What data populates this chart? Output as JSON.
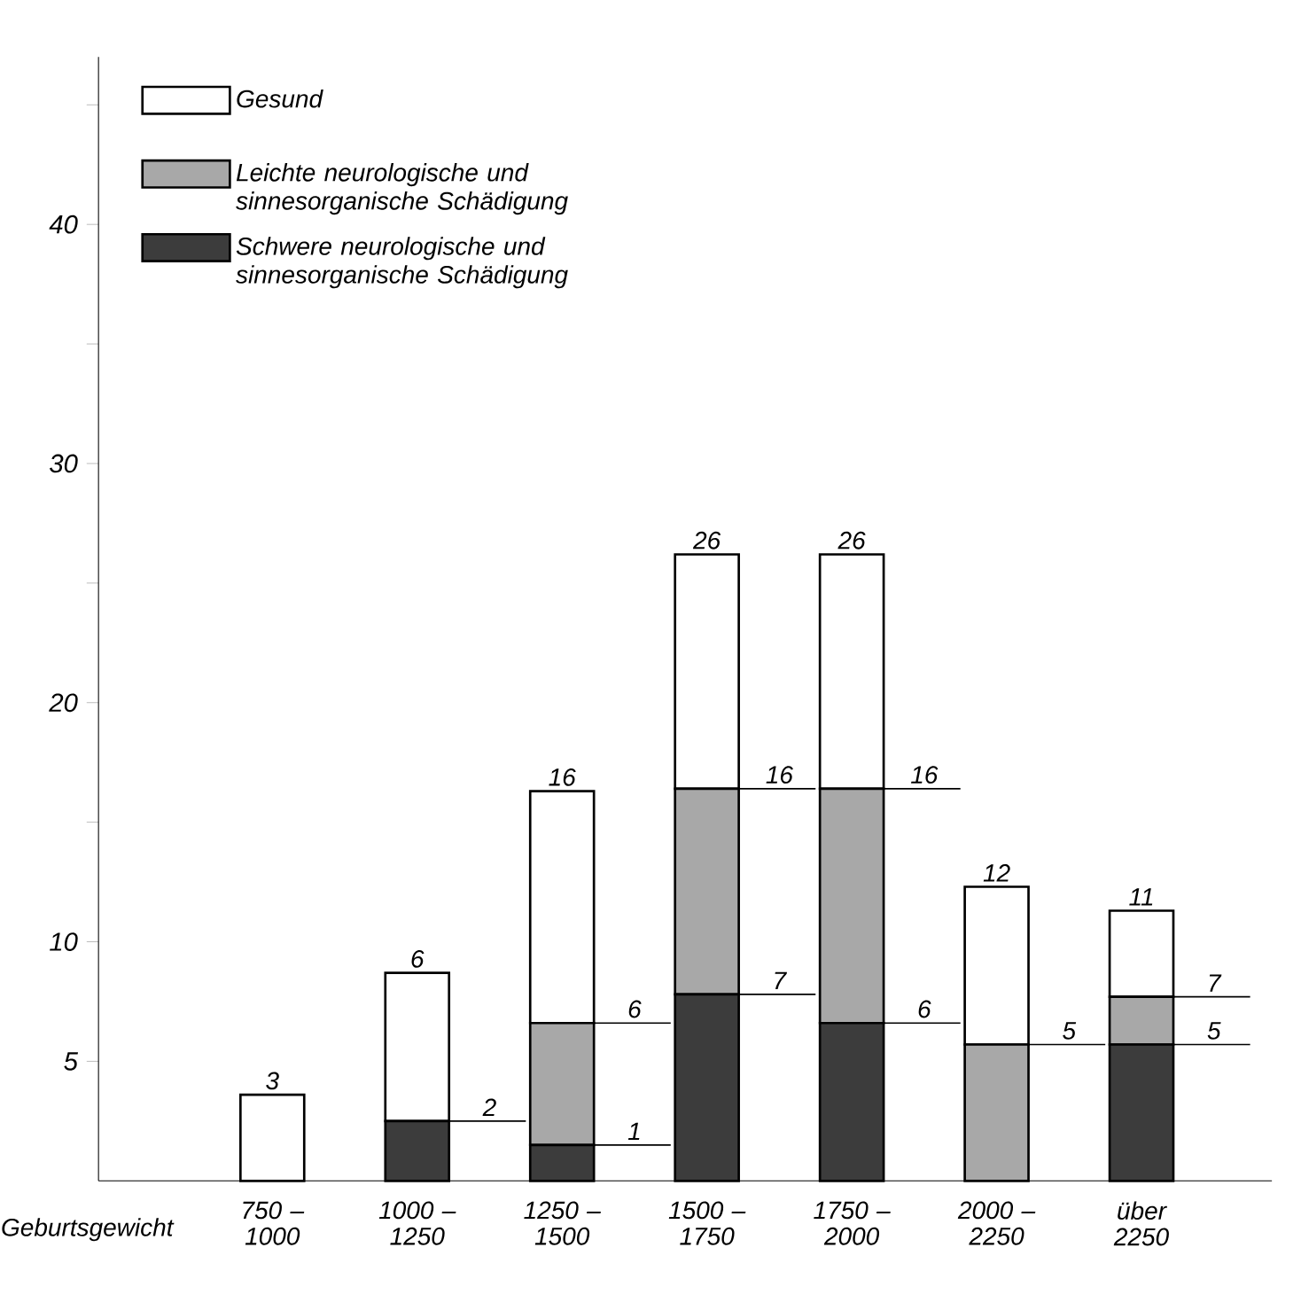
{
  "chart_data": {
    "type": "bar",
    "stacked": true,
    "xlabel": "Geburtsgewicht",
    "categories": [
      "750 – 1000",
      "1000 – 1250",
      "1250 – 1500",
      "1500 – 1750",
      "1750 – 2000",
      "2000 – 2250",
      "über 2250"
    ],
    "series": [
      {
        "name": "Schwere neurologische und sinnesorganische Schädigung",
        "color": "#3c3c3c",
        "values": [
          0,
          2.5,
          1.5,
          7.8,
          6.6,
          0,
          5.7
        ]
      },
      {
        "name": "Leichte neurologische und sinnesorganische Schädigung",
        "color": "#a8a8a8",
        "values": [
          0,
          0,
          5.1,
          8.6,
          9.8,
          5.7,
          2.0
        ]
      },
      {
        "name": "Gesund",
        "color": "#ffffff",
        "values": [
          3.6,
          6.2,
          9.7,
          9.8,
          9.8,
          6.6,
          3.6
        ]
      }
    ],
    "annotations": [
      {
        "text": "3",
        "x": "750 – 1000",
        "y": 3.6
      },
      {
        "text": "2",
        "x": "1000 – 1250",
        "y": 2.5
      },
      {
        "text": "6",
        "x": "1000 – 1250",
        "y": 8.7
      },
      {
        "text": "1",
        "x": "1250 – 1500",
        "y": 1.5
      },
      {
        "text": "6",
        "x": "1250 – 1500",
        "y": 6.6
      },
      {
        "text": "16",
        "x": "1250 – 1500",
        "y": 16.3
      },
      {
        "text": "7",
        "x": "1500 – 1750",
        "y": 7.8
      },
      {
        "text": "16",
        "x": "1500 – 1750",
        "y": 16.4
      },
      {
        "text": "26",
        "x": "1500 – 1750",
        "y": 26.2
      },
      {
        "text": "6",
        "x": "1750 – 2000",
        "y": 6.6
      },
      {
        "text": "16",
        "x": "1750 – 2000",
        "y": 16.4
      },
      {
        "text": "26",
        "x": "1750 – 2000",
        "y": 26.2
      },
      {
        "text": "5",
        "x": "2000 – 2250",
        "y": 5.7
      },
      {
        "text": "12",
        "x": "2000 – 2250",
        "y": 12.3
      },
      {
        "text": "5",
        "x": "über 2250",
        "y": 5.7
      },
      {
        "text": "7",
        "x": "über 2250",
        "y": 7.7
      },
      {
        "text": "11",
        "x": "über 2250",
        "y": 11.3
      }
    ],
    "ylim": [
      0,
      47
    ],
    "yticks": [
      5,
      10,
      {
        "value": 15,
        "label": null
      },
      20,
      {
        "value": 25,
        "label": null
      },
      30,
      {
        "value": 35,
        "label": null
      },
      40,
      {
        "value": 45,
        "label": null
      }
    ],
    "grid": false,
    "legend": "top left"
  }
}
